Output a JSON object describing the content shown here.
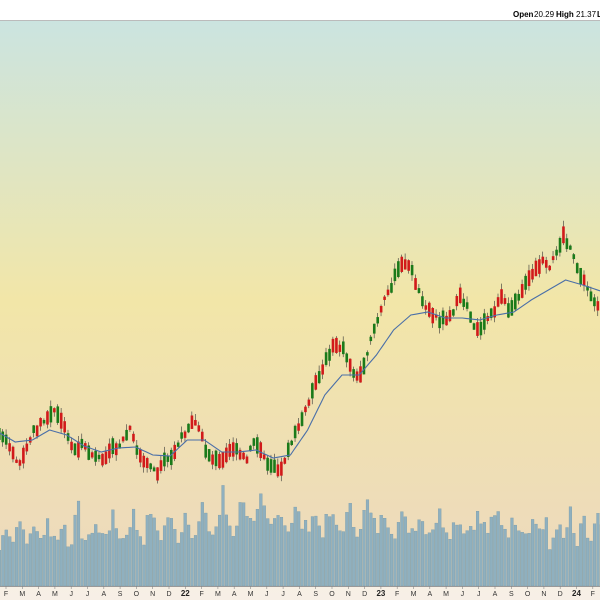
{
  "header": {
    "open_label": "Open",
    "open_value": "20.29",
    "high_label": "High",
    "high_value": "21.37",
    "low_label_partial": "L"
  },
  "colors": {
    "bg_top": "#c8e4e4",
    "bg_mid": "#f2e6a8",
    "bg_bottom": "#ecd8c0",
    "up": "#1a7a1a",
    "down": "#d11a1a",
    "ma": "#4a6fa8",
    "volume": "#8fb0bf"
  },
  "x_axis": {
    "ticks": [
      "F",
      "M",
      "A",
      "M",
      "J",
      "J",
      "A",
      "S",
      "O",
      "N",
      "D",
      "22",
      "F",
      "M",
      "A",
      "M",
      "J",
      "J",
      "A",
      "S",
      "O",
      "N",
      "D",
      "23",
      "F",
      "M",
      "A",
      "M",
      "J",
      "J",
      "A",
      "S",
      "O",
      "N",
      "D",
      "24",
      "F"
    ],
    "bold_ticks": [
      "22",
      "23",
      "24"
    ]
  },
  "chart_data": {
    "type": "candlestick",
    "price_path": [
      {
        "i": 0,
        "p": 432
      },
      {
        "i": 4,
        "p": 440
      },
      {
        "i": 8,
        "p": 455
      },
      {
        "i": 12,
        "p": 462
      },
      {
        "i": 16,
        "p": 448
      },
      {
        "i": 20,
        "p": 432
      },
      {
        "i": 24,
        "p": 425
      },
      {
        "i": 28,
        "p": 418
      },
      {
        "i": 32,
        "p": 412
      },
      {
        "i": 36,
        "p": 420
      },
      {
        "i": 40,
        "p": 438
      },
      {
        "i": 44,
        "p": 450
      },
      {
        "i": 48,
        "p": 446
      },
      {
        "i": 52,
        "p": 452
      },
      {
        "i": 56,
        "p": 458
      },
      {
        "i": 60,
        "p": 462
      },
      {
        "i": 64,
        "p": 448
      },
      {
        "i": 68,
        "p": 450
      },
      {
        "i": 72,
        "p": 440
      },
      {
        "i": 76,
        "p": 430
      },
      {
        "i": 80,
        "p": 450
      },
      {
        "i": 84,
        "p": 462
      },
      {
        "i": 88,
        "p": 465
      },
      {
        "i": 92,
        "p": 475
      },
      {
        "i": 96,
        "p": 462
      },
      {
        "i": 100,
        "p": 458
      },
      {
        "i": 104,
        "p": 445
      },
      {
        "i": 108,
        "p": 432
      },
      {
        "i": 112,
        "p": 420
      },
      {
        "i": 116,
        "p": 428
      },
      {
        "i": 120,
        "p": 450
      },
      {
        "i": 124,
        "p": 458
      },
      {
        "i": 128,
        "p": 462
      },
      {
        "i": 132,
        "p": 452
      },
      {
        "i": 136,
        "p": 448
      },
      {
        "i": 140,
        "p": 455
      },
      {
        "i": 144,
        "p": 460
      },
      {
        "i": 148,
        "p": 442
      },
      {
        "i": 152,
        "p": 450
      },
      {
        "i": 156,
        "p": 462
      },
      {
        "i": 160,
        "p": 465
      },
      {
        "i": 164,
        "p": 470
      },
      {
        "i": 168,
        "p": 448
      },
      {
        "i": 172,
        "p": 435
      },
      {
        "i": 176,
        "p": 420
      },
      {
        "i": 180,
        "p": 400
      },
      {
        "i": 184,
        "p": 385
      },
      {
        "i": 188,
        "p": 370
      },
      {
        "i": 192,
        "p": 352
      },
      {
        "i": 196,
        "p": 345
      },
      {
        "i": 200,
        "p": 350
      },
      {
        "i": 204,
        "p": 365
      },
      {
        "i": 208,
        "p": 378
      },
      {
        "i": 212,
        "p": 368
      },
      {
        "i": 216,
        "p": 340
      },
      {
        "i": 220,
        "p": 320
      },
      {
        "i": 224,
        "p": 300
      },
      {
        "i": 228,
        "p": 285
      },
      {
        "i": 232,
        "p": 270
      },
      {
        "i": 236,
        "p": 262
      },
      {
        "i": 240,
        "p": 272
      },
      {
        "i": 244,
        "p": 292
      },
      {
        "i": 248,
        "p": 305
      },
      {
        "i": 252,
        "p": 315
      },
      {
        "i": 256,
        "p": 320
      },
      {
        "i": 260,
        "p": 318
      },
      {
        "i": 264,
        "p": 310
      },
      {
        "i": 268,
        "p": 298
      },
      {
        "i": 272,
        "p": 305
      },
      {
        "i": 276,
        "p": 325
      },
      {
        "i": 280,
        "p": 330
      },
      {
        "i": 284,
        "p": 318
      },
      {
        "i": 288,
        "p": 310
      },
      {
        "i": 292,
        "p": 298
      },
      {
        "i": 296,
        "p": 310
      },
      {
        "i": 300,
        "p": 300
      },
      {
        "i": 304,
        "p": 290
      },
      {
        "i": 308,
        "p": 280
      },
      {
        "i": 312,
        "p": 270
      },
      {
        "i": 316,
        "p": 262
      },
      {
        "i": 320,
        "p": 270
      },
      {
        "i": 324,
        "p": 250
      },
      {
        "i": 328,
        "p": 235
      },
      {
        "i": 332,
        "p": 250
      },
      {
        "i": 336,
        "p": 268
      },
      {
        "i": 340,
        "p": 282
      },
      {
        "i": 344,
        "p": 295
      },
      {
        "i": 348,
        "p": 305
      },
      {
        "i": 352,
        "p": 305
      }
    ],
    "ma_path": [
      {
        "i": 0,
        "p": 432
      },
      {
        "i": 10,
        "p": 442
      },
      {
        "i": 20,
        "p": 440
      },
      {
        "i": 30,
        "p": 430
      },
      {
        "i": 40,
        "p": 435
      },
      {
        "i": 50,
        "p": 446
      },
      {
        "i": 60,
        "p": 452
      },
      {
        "i": 70,
        "p": 448
      },
      {
        "i": 80,
        "p": 447
      },
      {
        "i": 90,
        "p": 455
      },
      {
        "i": 100,
        "p": 456
      },
      {
        "i": 110,
        "p": 440
      },
      {
        "i": 120,
        "p": 440
      },
      {
        "i": 130,
        "p": 452
      },
      {
        "i": 140,
        "p": 452
      },
      {
        "i": 150,
        "p": 450
      },
      {
        "i": 160,
        "p": 458
      },
      {
        "i": 170,
        "p": 455
      },
      {
        "i": 180,
        "p": 430
      },
      {
        "i": 190,
        "p": 395
      },
      {
        "i": 200,
        "p": 375
      },
      {
        "i": 210,
        "p": 375
      },
      {
        "i": 220,
        "p": 355
      },
      {
        "i": 230,
        "p": 330
      },
      {
        "i": 240,
        "p": 315
      },
      {
        "i": 250,
        "p": 312
      },
      {
        "i": 260,
        "p": 318
      },
      {
        "i": 270,
        "p": 318
      },
      {
        "i": 280,
        "p": 320
      },
      {
        "i": 290,
        "p": 315
      },
      {
        "i": 300,
        "p": 312
      },
      {
        "i": 310,
        "p": 300
      },
      {
        "i": 320,
        "p": 290
      },
      {
        "i": 330,
        "p": 280
      },
      {
        "i": 340,
        "p": 285
      },
      {
        "i": 352,
        "p": 292
      }
    ],
    "volume_profile": [
      30,
      45,
      60,
      50,
      40,
      55,
      70,
      45,
      35,
      50,
      60,
      45,
      40,
      55,
      65,
      50,
      42,
      48,
      52,
      58,
      40,
      45,
      60,
      75,
      50,
      42,
      38,
      55,
      60,
      48,
      45,
      52,
      58,
      65,
      55,
      48,
      42,
      50,
      62,
      70,
      55,
      48,
      44,
      60,
      75,
      58,
      52,
      46,
      55,
      68,
      60,
      50,
      45,
      55,
      72,
      66,
      52,
      48,
      58,
      80,
      62,
      54,
      48,
      56,
      70,
      95,
      70,
      58,
      50,
      62,
      78,
      90,
      72,
      60,
      55,
      66,
      84,
      72,
      60,
      56,
      64,
      78,
      70,
      60,
      56,
      62,
      74,
      68,
      58,
      54,
      60,
      70,
      66,
      58,
      52,
      60,
      68,
      62,
      56,
      52,
      58,
      66,
      74,
      60,
      54,
      60,
      70,
      82,
      68,
      58,
      54,
      62,
      72,
      64,
      56,
      52,
      60,
      66,
      60,
      56,
      54,
      60,
      68,
      62,
      56,
      52,
      58,
      64,
      70,
      62,
      56,
      52,
      58,
      66,
      60,
      56,
      52,
      58,
      62,
      68,
      60,
      56,
      52,
      58,
      64,
      70,
      62,
      56,
      52,
      58,
      66,
      60,
      56,
      52,
      58,
      62,
      60,
      56,
      52,
      58
    ],
    "note": "Daily candles from early 2021 to early 2024 with a moving average overlay and volume bars; values are read from the rendered chart."
  }
}
